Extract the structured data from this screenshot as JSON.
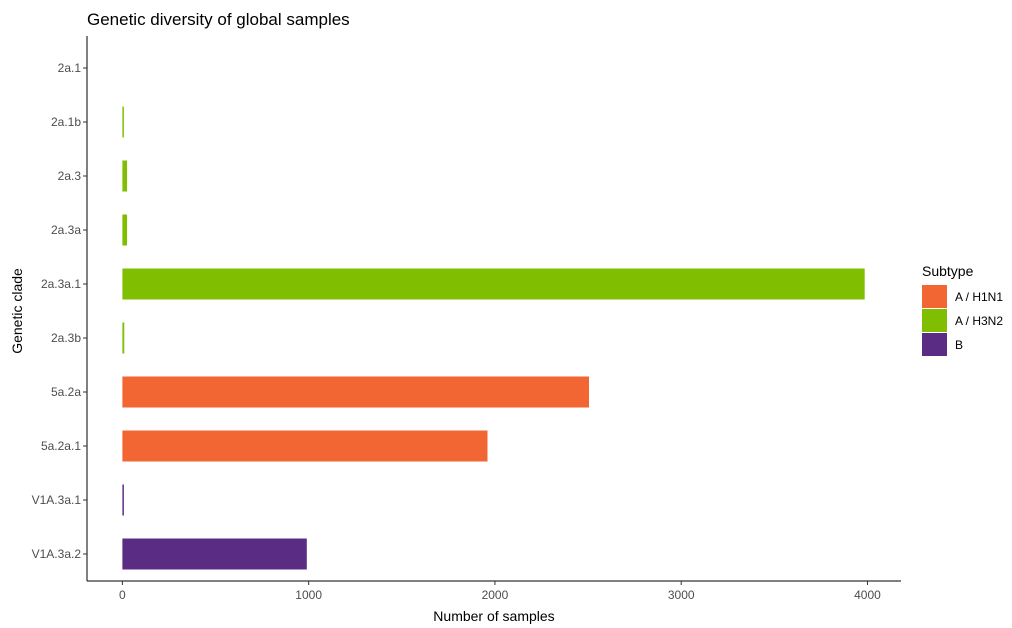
{
  "chart_data": {
    "type": "bar",
    "orientation": "horizontal",
    "title": "Genetic diversity of global samples",
    "xlabel": "Number of samples",
    "ylabel": "Genetic clade",
    "xlim": [
      -190,
      4180
    ],
    "xticks": [
      0,
      1000,
      2000,
      3000,
      4000
    ],
    "xtick_labels": [
      "0",
      "1000",
      "2000",
      "3000",
      "4000"
    ],
    "grid": false,
    "legend": {
      "title": "Subtype",
      "placement": "right",
      "entries": [
        "A / H1N1",
        "A / H3N2",
        "B"
      ]
    },
    "categories": [
      "2a.1",
      "2a.1b",
      "2a.3",
      "2a.3a",
      "2a.3a.1",
      "2a.3b",
      "5a.2a",
      "5a.2a.1",
      "V1A.3a.1",
      "V1A.3a.2"
    ],
    "bars": [
      {
        "category": "2a.1",
        "value": 0,
        "series": "A / H3N2"
      },
      {
        "category": "2a.1b",
        "value": 8,
        "series": "A / H3N2"
      },
      {
        "category": "2a.3",
        "value": 25,
        "series": "A / H3N2"
      },
      {
        "category": "2a.3a",
        "value": 25,
        "series": "A / H3N2"
      },
      {
        "category": "2a.3a.1",
        "value": 3985,
        "series": "A / H3N2"
      },
      {
        "category": "2a.3b",
        "value": 10,
        "series": "A / H3N2"
      },
      {
        "category": "5a.2a",
        "value": 2505,
        "series": "A / H1N1"
      },
      {
        "category": "5a.2a.1",
        "value": 1960,
        "series": "A / H1N1"
      },
      {
        "category": "V1A.3a.1",
        "value": 8,
        "series": "B"
      },
      {
        "category": "V1A.3a.2",
        "value": 990,
        "series": "B"
      }
    ],
    "colors": {
      "A / H1N1": "#f26633",
      "A / H3N2": "#7fbe00",
      "B": "#5b2c83"
    }
  }
}
